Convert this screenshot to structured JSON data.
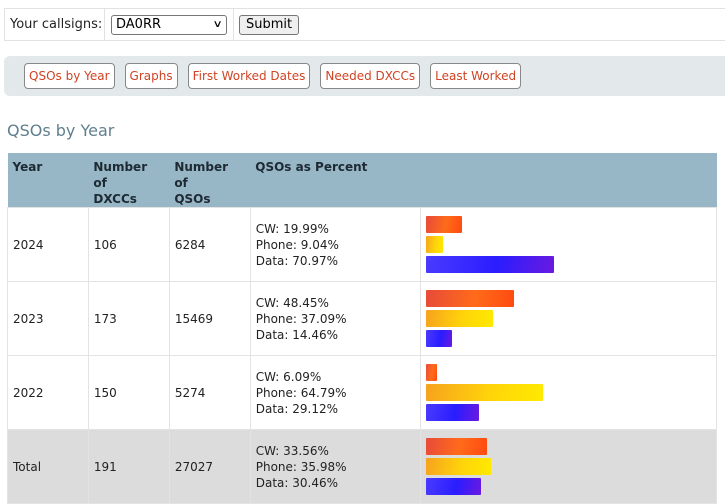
{
  "form": {
    "label": "Your callsigns:",
    "callsign_value": "DA0RR",
    "submit_label": "Submit"
  },
  "nav": [
    {
      "label": "QSOs by Year"
    },
    {
      "label": "Graphs"
    },
    {
      "label": "First Worked Dates"
    },
    {
      "label": "Needed DXCCs"
    },
    {
      "label": "Least Worked"
    }
  ],
  "page_title": "QSOs by Year",
  "table": {
    "headers": {
      "year": "Year",
      "dxccs": [
        "Number of",
        "DXCCs"
      ],
      "qsos": [
        "Number of",
        "QSOs"
      ],
      "percent": "QSOs as Percent"
    },
    "rows": [
      {
        "year": "2024",
        "dxccs": "106",
        "qsos": "6284",
        "cw": "CW: 19.99%",
        "phone": "Phone: 9.04%",
        "data": "Data: 70.97%",
        "cw_pct": 19.99,
        "phone_pct": 9.04,
        "data_pct": 70.97
      },
      {
        "year": "2023",
        "dxccs": "173",
        "qsos": "15469",
        "cw": "CW: 48.45%",
        "phone": "Phone: 37.09%",
        "data": "Data: 14.46%",
        "cw_pct": 48.45,
        "phone_pct": 37.09,
        "data_pct": 14.46
      },
      {
        "year": "2022",
        "dxccs": "150",
        "qsos": "5274",
        "cw": "CW: 6.09%",
        "phone": "Phone: 64.79%",
        "data": "Data: 29.12%",
        "cw_pct": 6.09,
        "phone_pct": 64.79,
        "data_pct": 29.12
      },
      {
        "year": "Total",
        "dxccs": "191",
        "qsos": "27027",
        "cw": "CW: 33.56%",
        "phone": "Phone: 35.98%",
        "data": "Data: 30.46%",
        "cw_pct": 33.56,
        "phone_pct": 35.98,
        "data_pct": 30.46
      }
    ]
  },
  "colors": {
    "header_bg": "#97b6c6",
    "nav_text": "#d04323",
    "title_text": "#5f7f8f",
    "total_row_bg": "#dcdcdc"
  }
}
